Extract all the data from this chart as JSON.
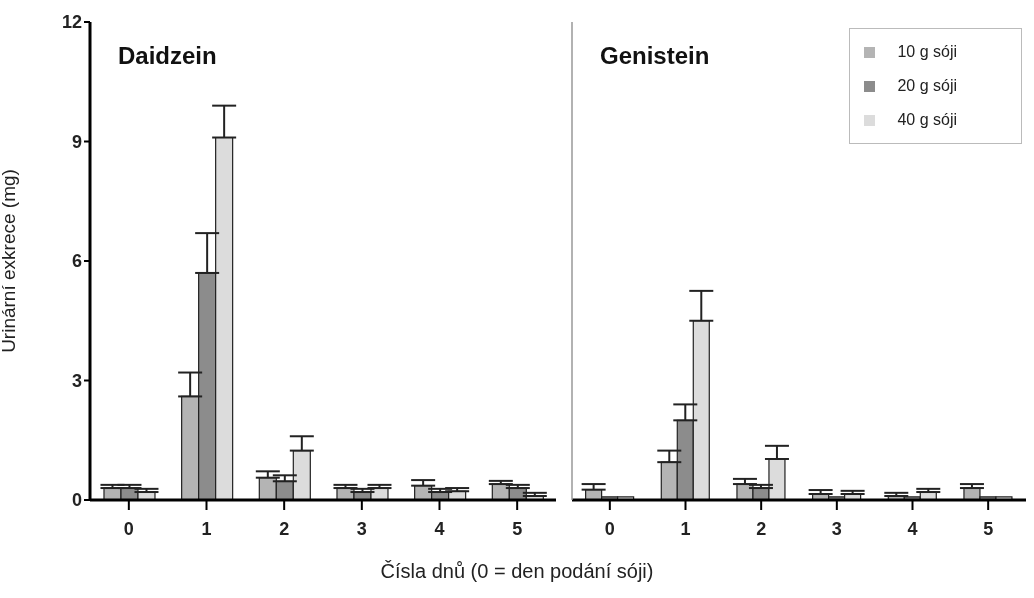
{
  "chart_data": [
    {
      "type": "bar",
      "title": "Daidzein",
      "ylabel": "Urinární exkrece (mg)",
      "xlabel": "Čísla dnů (0 = den podání sóji)",
      "categories": [
        "0",
        "1",
        "2",
        "3",
        "4",
        "5"
      ],
      "ylim": [
        0,
        12
      ],
      "yticks": [
        0,
        3,
        6,
        9,
        12
      ],
      "series": [
        {
          "color": "#b4b4b4",
          "values": [
            0.3,
            2.6,
            0.56,
            0.3,
            0.36,
            0.4
          ],
          "errors": [
            0.08,
            0.6,
            0.16,
            0.08,
            0.14,
            0.08
          ]
        },
        {
          "color": "#8c8c8c",
          "values": [
            0.3,
            5.7,
            0.47,
            0.2,
            0.2,
            0.3
          ],
          "errors": [
            0.08,
            1.0,
            0.15,
            0.08,
            0.08,
            0.08
          ]
        },
        {
          "color": "#dcdcdc",
          "values": [
            0.2,
            9.1,
            1.24,
            0.3,
            0.22,
            0.1
          ],
          "errors": [
            0.08,
            0.8,
            0.36,
            0.08,
            0.08,
            0.08
          ]
        }
      ]
    },
    {
      "type": "bar",
      "title": "Genistein",
      "categories": [
        "0",
        "1",
        "2",
        "3",
        "4",
        "5"
      ],
      "ylim": [
        0,
        12
      ],
      "yticks": [
        0,
        3,
        6,
        9,
        12
      ],
      "tick_labels": "x",
      "legend": "top right",
      "series": [
        {
          "name": "10 g sóji",
          "color": "#b4b4b4",
          "values": [
            0.26,
            0.95,
            0.4,
            0.15,
            0.1,
            0.3
          ],
          "errors": [
            0.14,
            0.29,
            0.13,
            0.1,
            0.08,
            0.1
          ]
        },
        {
          "name": "20 g sóji",
          "color": "#8c8c8c",
          "values": [
            0.08,
            2.0,
            0.3,
            0.08,
            0.08,
            0.08
          ],
          "errors": [
            null,
            0.4,
            0.08,
            null,
            null,
            null
          ]
        },
        {
          "name": "40 g sóji",
          "color": "#dcdcdc",
          "values": [
            0.08,
            4.5,
            1.03,
            0.15,
            0.2,
            0.08
          ],
          "errors": [
            null,
            0.75,
            0.33,
            0.08,
            0.08,
            null
          ]
        }
      ]
    }
  ]
}
